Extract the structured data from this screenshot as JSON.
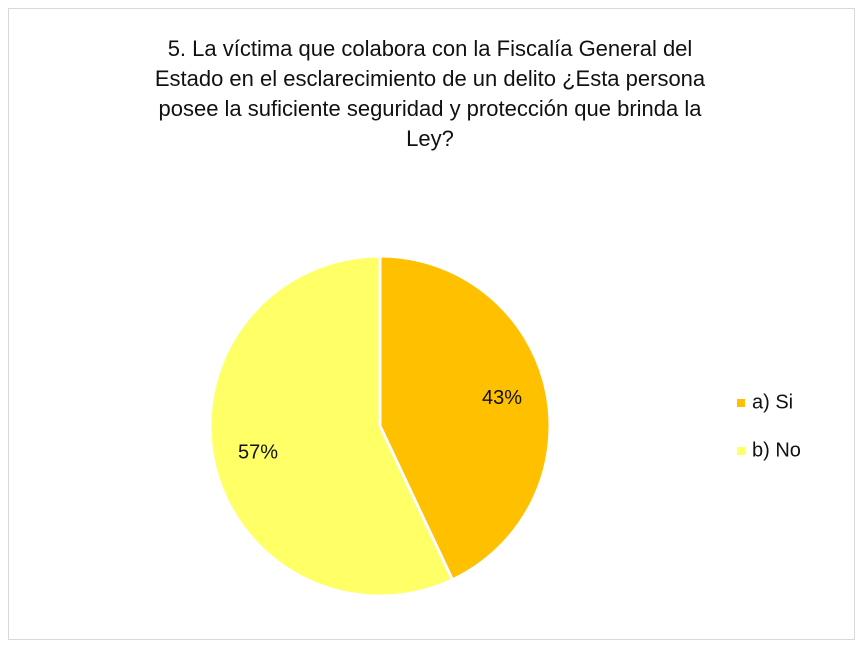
{
  "chart_data": {
    "type": "pie",
    "title": "5. La víctima que colabora con la Fiscalía General del Estado en el esclarecimiento de un delito ¿Esta persona posee la suficiente seguridad y protección que brinda la Ley?",
    "categories": [
      "a) Si",
      "b) No"
    ],
    "values": [
      43,
      57
    ],
    "value_labels": [
      "43%",
      "57%"
    ],
    "colors": [
      "#FFC000",
      "#FFFF66"
    ],
    "legend": "right"
  }
}
